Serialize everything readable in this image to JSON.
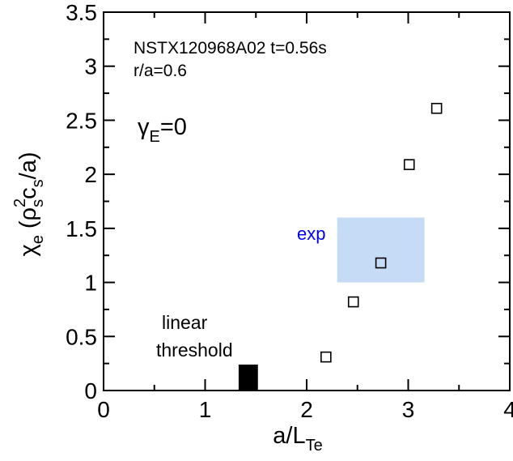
{
  "chart_data": {
    "type": "scatter",
    "xlim": [
      0,
      4
    ],
    "ylim": [
      0,
      3.5
    ],
    "x_ticks": [
      0,
      1,
      2,
      3,
      4
    ],
    "y_ticks": [
      0,
      0.5,
      1,
      1.5,
      2,
      2.5,
      3,
      3.5
    ],
    "x_tick_labels": [
      "0",
      "1",
      "2",
      "3",
      "4"
    ],
    "y_tick_labels": [
      "0",
      "0.5",
      "1",
      "1.5",
      "2",
      "2.5",
      "3",
      "3.5"
    ],
    "xlabel": {
      "main": "a/L",
      "sub": "Te"
    },
    "ylabel": {
      "chi": "χ",
      "chi_sub": "e",
      "open": " (ρ",
      "rho_sup": "2",
      "rho_sub": "s",
      "c": "c",
      "c_sub": "s",
      "close": "/a)"
    },
    "grid": false,
    "series": [
      {
        "marker": "open-square",
        "color": "#000000",
        "x": [
          2.19,
          2.46,
          2.73,
          3.01,
          3.28
        ],
        "y": [
          0.31,
          0.82,
          1.18,
          2.09,
          2.61
        ]
      }
    ],
    "linear_threshold": {
      "label_line1": "linear",
      "label_line2": "threshold",
      "x_range": [
        1.33,
        1.52
      ],
      "y_range": [
        0,
        0.24
      ],
      "color": "#000000"
    },
    "exp_region": {
      "label": "exp",
      "label_color": "#0000ee",
      "x_range": [
        2.3,
        3.16
      ],
      "y_range": [
        1.0,
        1.6
      ],
      "color": "#c6dbf5"
    },
    "annotations": {
      "shot": "NSTX120968A02 t=0.56s",
      "radius": "r/a=0.6",
      "gamma": "γ",
      "gamma_sub": "E",
      "gamma_val": "=0"
    }
  }
}
